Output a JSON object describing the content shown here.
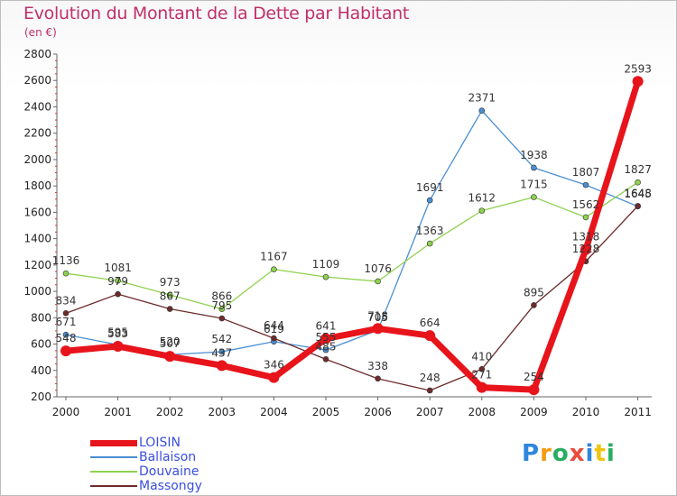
{
  "title": "Evolution du Montant de la Dette par Habitant",
  "subtitle": "(en €)",
  "logo": {
    "text": "Proxiti",
    "letters": [
      {
        "ch": "P",
        "color": "#2e86de"
      },
      {
        "ch": "r",
        "color": "#f39c12"
      },
      {
        "ch": "o",
        "color": "#27ae60"
      },
      {
        "ch": "x",
        "color": "#e74c3c"
      },
      {
        "ch": "i",
        "color": "#2e86de"
      },
      {
        "ch": "t",
        "color": "#f1c40f"
      },
      {
        "ch": "i",
        "color": "#27ae60"
      }
    ]
  },
  "chart_data": {
    "type": "line",
    "title": "Evolution du Montant de la Dette par Habitant",
    "subtitle": "(en €)",
    "xlabel": "",
    "ylabel": "",
    "ylim": [
      200,
      2800
    ],
    "yticks": [
      200,
      400,
      600,
      800,
      1000,
      1200,
      1400,
      1600,
      1800,
      2000,
      2200,
      2400,
      2600,
      2800
    ],
    "categories": [
      "2000",
      "2001",
      "2002",
      "2003",
      "2004",
      "2005",
      "2006",
      "2007",
      "2008",
      "2009",
      "2010",
      "2011"
    ],
    "grid": false,
    "legend_position": "bottom-left",
    "series": [
      {
        "name": "LOISIN",
        "color": "#e8141b",
        "width": 7,
        "marker": 6,
        "values": [
          548,
          583,
          507,
          437,
          346,
          641,
          718,
          664,
          271,
          254,
          1318,
          2593
        ],
        "labels": [
          "548",
          "583",
          "507",
          "437",
          "346",
          "641",
          "718",
          "664",
          "271",
          "254",
          "1318",
          "2593"
        ]
      },
      {
        "name": "Ballaison",
        "color": "#4a8fd3",
        "width": 1.3,
        "marker": 3,
        "values": [
          671,
          595,
          520,
          542,
          619,
          555,
          705,
          1691,
          2371,
          1938,
          1807,
          1645
        ],
        "labels": [
          "671",
          "595",
          "520",
          "542",
          "619",
          "555",
          "705",
          "1691",
          "2371",
          "1938",
          "1807",
          "1645"
        ]
      },
      {
        "name": "Douvaine",
        "color": "#8fd14f",
        "width": 1.3,
        "marker": 3,
        "values": [
          1136,
          1081,
          973,
          866,
          1167,
          1109,
          1076,
          1363,
          1612,
          1715,
          1562,
          1827
        ],
        "labels": [
          "1136",
          "1081",
          "973",
          "866",
          "1167",
          "1109",
          "1076",
          "1363",
          "1612",
          "1715",
          "1562",
          "1827"
        ]
      },
      {
        "name": "Massongy",
        "color": "#6e2b2b",
        "width": 1.3,
        "marker": 3,
        "values": [
          834,
          979,
          867,
          795,
          644,
          485,
          338,
          248,
          410,
          895,
          1228,
          1648
        ],
        "labels": [
          "834",
          "979",
          "867",
          "795",
          "644",
          "485",
          "338",
          "248",
          "410",
          "895",
          "1228",
          "1648"
        ]
      }
    ]
  }
}
